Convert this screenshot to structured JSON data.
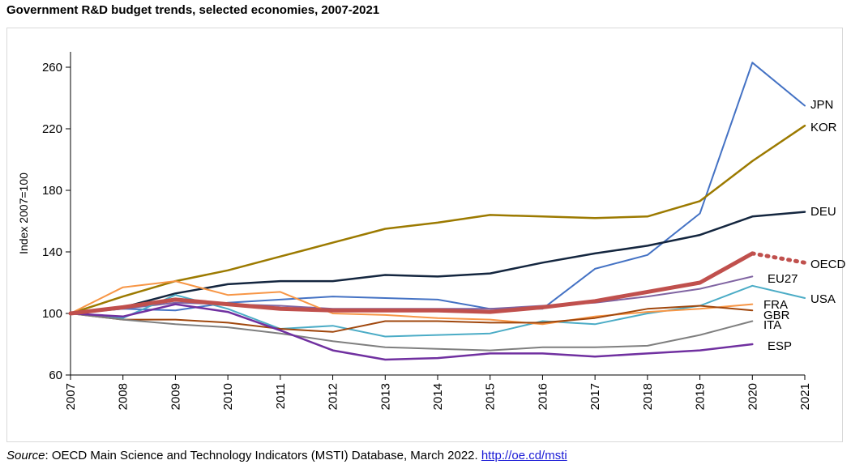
{
  "title": "Government R&D budget trends, selected economies, 2007-2021",
  "source": {
    "label": "Source",
    "text": ": OECD Main Science and Technology Indicators (MSTI) Database, March 2022. ",
    "link": "http://oe.cd/msti"
  },
  "chart_data": {
    "type": "line",
    "title": "Government R&D budget trends, selected economies, 2007-2021",
    "xlabel": "",
    "ylabel": "Index 2007=100",
    "ylim": [
      60,
      270
    ],
    "yticks": [
      60,
      100,
      140,
      180,
      220,
      260
    ],
    "x": [
      "2007",
      "2008",
      "2009",
      "2010",
      "2011",
      "2012",
      "2013",
      "2014",
      "2015",
      "2016",
      "2017",
      "2018",
      "2019",
      "2020",
      "2021"
    ],
    "grid": false,
    "series": [
      {
        "name": "JPN",
        "color": "#4472c4",
        "width": 2,
        "values": [
          100,
          103,
          102,
          107,
          109,
          111,
          110,
          109,
          103,
          103,
          129,
          138,
          165,
          263,
          235
        ]
      },
      {
        "name": "KOR",
        "color": "#9c7a00",
        "width": 2.5,
        "values": [
          100,
          111,
          121,
          128,
          137,
          146,
          155,
          159,
          164,
          163,
          162,
          163,
          173,
          199,
          222
        ]
      },
      {
        "name": "DEU",
        "color": "#14263f",
        "width": 2.5,
        "values": [
          100,
          104,
          113,
          119,
          121,
          121,
          125,
          124,
          126,
          133,
          139,
          144,
          151,
          163,
          166
        ]
      },
      {
        "name": "OECD",
        "color": "#c0504d",
        "width": 5,
        "values": [
          100,
          104,
          109,
          106,
          103,
          102,
          102,
          102,
          101,
          104,
          108,
          114,
          120,
          139,
          null
        ],
        "projection": {
          "from_x": "2020",
          "to_x": "2021",
          "values": [
            139,
            133
          ]
        }
      },
      {
        "name": "EU27",
        "color": "#8064a2",
        "width": 2,
        "values": [
          100,
          103,
          107,
          106,
          105,
          103,
          103,
          103,
          103,
          105,
          107,
          111,
          116,
          124,
          null
        ]
      },
      {
        "name": "USA",
        "color": "#4bacc6",
        "width": 2,
        "values": [
          100,
          97,
          112,
          103,
          90,
          92,
          85,
          86,
          87,
          95,
          93,
          100,
          105,
          118,
          110
        ]
      },
      {
        "name": "FRA",
        "color": "#f79646",
        "width": 2,
        "values": [
          100,
          117,
          121,
          112,
          114,
          100,
          99,
          97,
          96,
          93,
          98,
          101,
          103,
          106,
          null
        ]
      },
      {
        "name": "GBR",
        "color": "#a0470d",
        "width": 2,
        "values": [
          100,
          96,
          96,
          94,
          90,
          88,
          95,
          95,
          94,
          94,
          97,
          103,
          105,
          102,
          null
        ]
      },
      {
        "name": "ITA",
        "color": "#7f7f7f",
        "width": 2,
        "values": [
          100,
          96,
          93,
          91,
          87,
          82,
          78,
          77,
          76,
          78,
          78,
          79,
          86,
          95,
          null
        ]
      },
      {
        "name": "ESP",
        "color": "#7030a0",
        "width": 2.5,
        "values": [
          100,
          98,
          106,
          101,
          89,
          76,
          70,
          71,
          74,
          74,
          72,
          74,
          76,
          80,
          null
        ]
      }
    ]
  }
}
